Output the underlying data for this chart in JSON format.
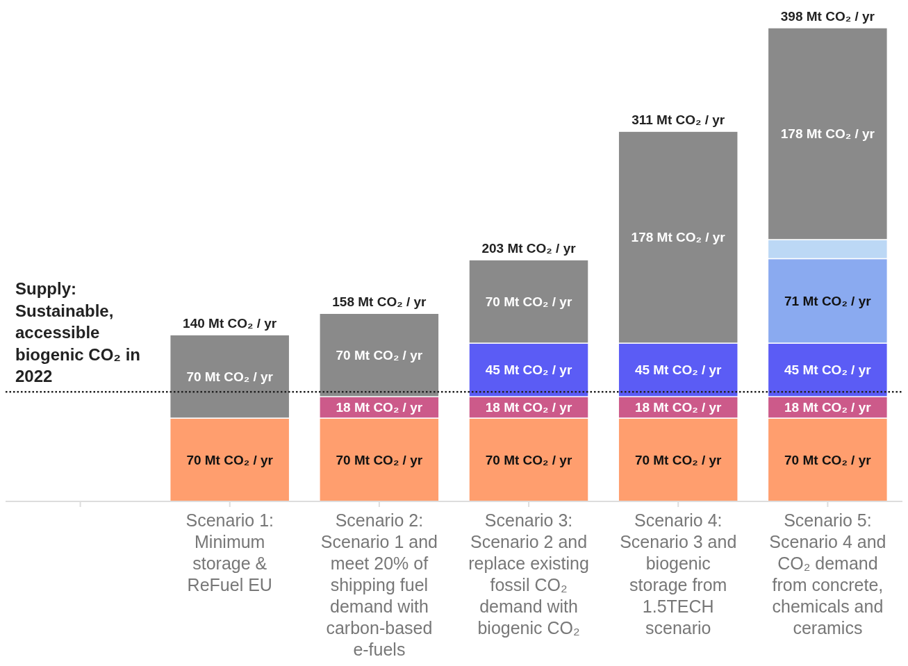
{
  "chart_data": {
    "type": "bar",
    "stacked": true,
    "categories": [
      null,
      "Scenario 1:\nMinimum\nstorage &\nReFuel EU",
      "Scenario 2:\nScenario 1 and\nmeet 20% of\nshipping fuel\ndemand with\ncarbon-based\ne-fuels",
      "Scenario 3:\nScenario 2 and\nreplace existing\nfossil CO₂\ndemand with\nbiogenic CO₂",
      "Scenario 4:\nScenario 3 and\nbiogenic\nstorage from\n1.5TECH\nscenario",
      "Scenario 5:\nScenario 4 and\nCO₂ demand\nfrom concrete,\nchemicals and\nceramics"
    ],
    "series": [
      {
        "color": "#ff9e6e",
        "values": [
          null,
          70,
          70,
          70,
          70,
          70
        ],
        "value_labels": [
          null,
          "70 Mt CO₂ / yr",
          "70 Mt CO₂ / yr",
          "70 Mt CO₂ / yr",
          "70 Mt CO₂ / yr",
          "70 Mt CO₂ / yr"
        ]
      },
      {
        "color": "#cc5a8a",
        "values": [
          null,
          null,
          18,
          18,
          18,
          18
        ],
        "value_labels": [
          null,
          null,
          "18 Mt CO₂ / yr",
          "18 Mt CO₂ / yr",
          "18 Mt CO₂ / yr",
          "18 Mt CO₂ / yr"
        ]
      },
      {
        "color": "#5b5cf5",
        "values": [
          null,
          null,
          null,
          45,
          45,
          45
        ],
        "value_labels": [
          null,
          null,
          null,
          "45 Mt CO₂ / yr",
          "45 Mt CO₂ / yr",
          "45 Mt CO₂ / yr"
        ]
      },
      {
        "color": "#8aaaf0",
        "values": [
          null,
          null,
          null,
          null,
          null,
          71
        ],
        "value_labels": [
          null,
          null,
          null,
          null,
          null,
          "71 Mt CO₂ / yr"
        ]
      },
      {
        "color": "#bcd8f5",
        "values": [
          null,
          null,
          null,
          null,
          null,
          16
        ],
        "value_labels": [
          null,
          null,
          null,
          null,
          null,
          null
        ]
      },
      {
        "color": "#8a8a8a",
        "values": [
          null,
          70,
          70,
          70,
          178,
          178
        ],
        "value_labels": [
          null,
          "70 Mt CO₂ / yr",
          "70 Mt CO₂ / yr",
          "70 Mt CO₂ / yr",
          "178 Mt CO₂ / yr",
          "178 Mt CO₂ / yr"
        ]
      }
    ],
    "totals": [
      null,
      "140 Mt CO₂ / yr",
      "158 Mt CO₂ / yr",
      "203 Mt CO₂ / yr",
      "311 Mt CO₂ / yr",
      "398 Mt CO₂ / yr"
    ],
    "ref_lines": [
      {
        "axis": "y",
        "value": 92,
        "label": "Supply:\nSustainable,\naccessible\nbiogenic CO₂ in\n2022",
        "color": "#222222",
        "line_style": "dotted"
      }
    ],
    "legend": false,
    "grid": false
  }
}
